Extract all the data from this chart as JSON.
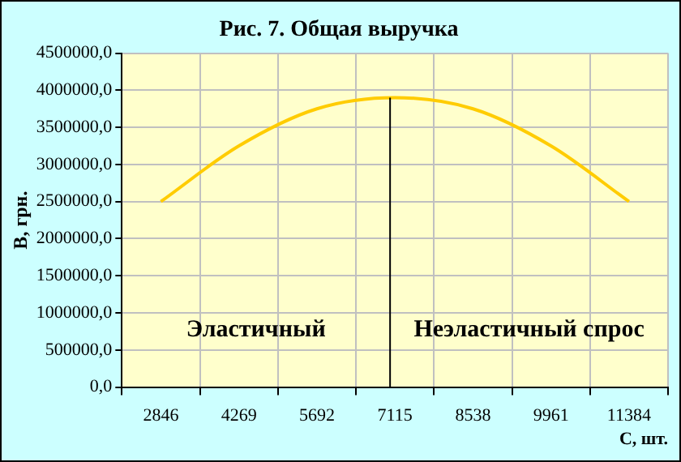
{
  "chart_data": {
    "type": "line",
    "title": "Рис. 7. Общая выручка",
    "xlabel": "С, шт.",
    "ylabel": "В, грн.",
    "categories": [
      "2846",
      "4269",
      "5692",
      "7115",
      "8538",
      "9961",
      "11384"
    ],
    "series": [
      {
        "color": "#ffcc00",
        "values": [
          2500000,
          3250000,
          3750000,
          3900000,
          3750000,
          3250000,
          2500000
        ]
      }
    ],
    "ylim": [
      0,
      4500000
    ],
    "yticks": [
      {
        "value": 0,
        "label": "0,0"
      },
      {
        "value": 500000,
        "label": "500000,0"
      },
      {
        "value": 1000000,
        "label": "1000000,0"
      },
      {
        "value": 1500000,
        "label": "1500000,0"
      },
      {
        "value": 2000000,
        "label": "2000000,0"
      },
      {
        "value": 2500000,
        "label": "2500000,0"
      },
      {
        "value": 3000000,
        "label": "3000000,0"
      },
      {
        "value": 3500000,
        "label": "3500000,0"
      },
      {
        "value": 4000000,
        "label": "4000000,0"
      },
      {
        "value": 4500000,
        "label": "4500000,0"
      }
    ],
    "ref_lines": [
      {
        "axis": "x",
        "value": "7115",
        "color": "#000000"
      }
    ],
    "annotations": [
      "Эластичный",
      "Неэластичный спрос"
    ],
    "grid": true,
    "legend": false,
    "marker": "none",
    "line_style": "solid"
  }
}
